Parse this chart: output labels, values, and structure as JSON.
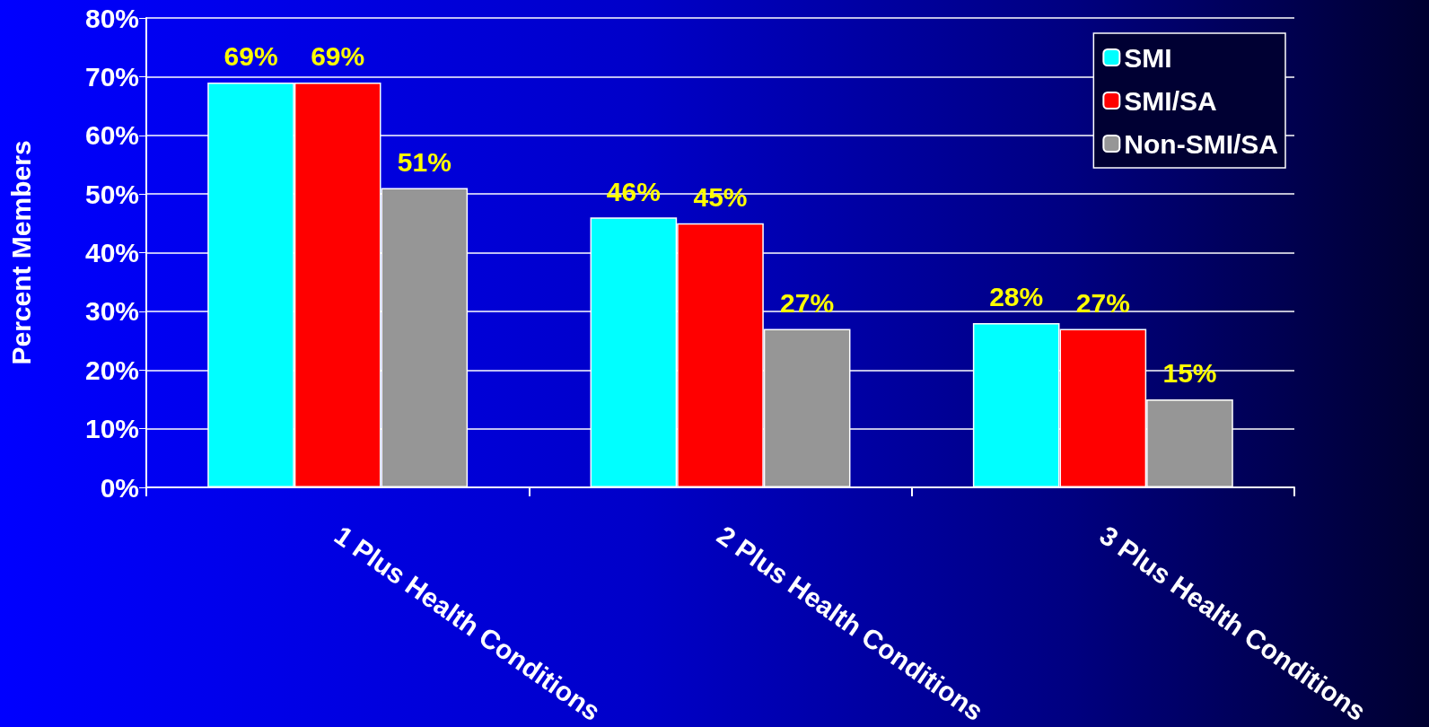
{
  "chart_data": {
    "type": "bar",
    "ylabel": "Percent Members",
    "categories": [
      "1 Plus Health Conditions",
      "2 Plus Health Conditions",
      "3 Plus Health Conditions"
    ],
    "series": [
      {
        "name": "SMI",
        "color": "#00ffff",
        "values": [
          69,
          46,
          28
        ],
        "value_labels": [
          "69%",
          "46%",
          "28%"
        ]
      },
      {
        "name": "SMI/SA",
        "color": "#ff0000",
        "values": [
          69,
          45,
          27
        ],
        "value_labels": [
          "69%",
          "45%",
          "27%"
        ]
      },
      {
        "name": "Non-SMI/SA",
        "color": "#969696",
        "values": [
          51,
          27,
          15
        ],
        "value_labels": [
          "51%",
          "27%",
          "15%"
        ]
      }
    ],
    "ylim": [
      0,
      80
    ],
    "yticks": [
      {
        "value": 0,
        "label": "0%"
      },
      {
        "value": 10,
        "label": "10%"
      },
      {
        "value": 20,
        "label": "20%"
      },
      {
        "value": 30,
        "label": "30%"
      },
      {
        "value": 40,
        "label": "40%"
      },
      {
        "value": 50,
        "label": "50%"
      },
      {
        "value": 60,
        "label": "60%"
      },
      {
        "value": 70,
        "label": "70%"
      },
      {
        "value": 80,
        "label": "80%"
      }
    ],
    "grid": "y",
    "legend": "top right"
  }
}
